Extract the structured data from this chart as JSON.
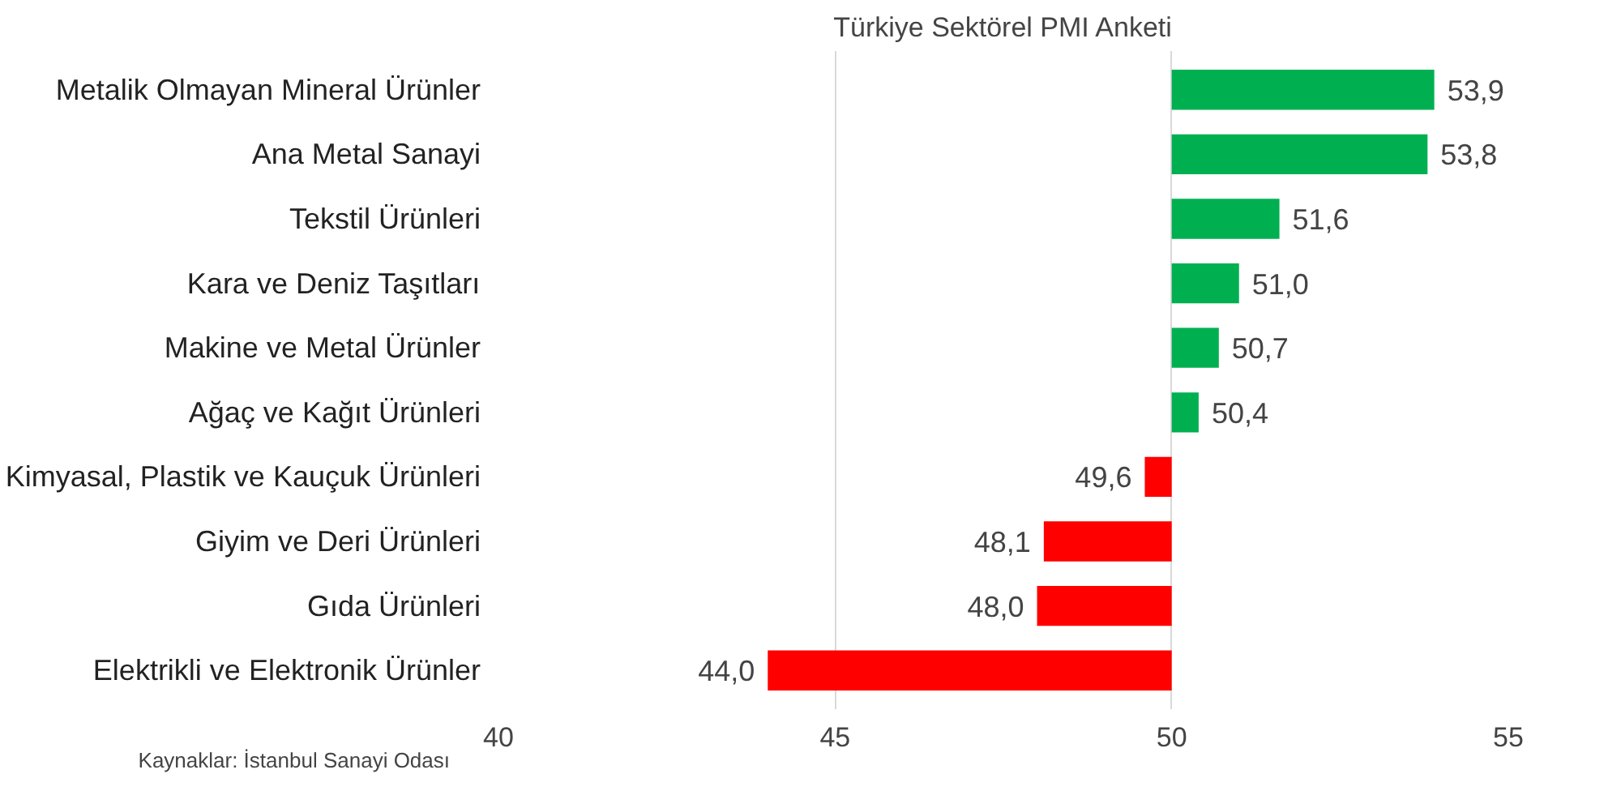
{
  "chart_data": {
    "type": "bar",
    "orientation": "horizontal",
    "title": "Türkiye Sektörel PMI Anketi",
    "categories": [
      "Metalik Olmayan Mineral Ürünler",
      "Ana Metal Sanayi",
      "Tekstil Ürünleri",
      "Kara ve Deniz Taşıtları",
      "Makine ve Metal Ürünler",
      "Ağaç ve Kağıt Ürünleri",
      "Kimyasal, Plastik ve Kauçuk Ürünleri",
      "Giyim ve Deri Ürünleri",
      "Gıda Ürünleri",
      "Elektrikli ve Elektronik Ürünler"
    ],
    "base": [
      50,
      50,
      50,
      50,
      50,
      50,
      50,
      50,
      50,
      50
    ],
    "values": [
      3.9,
      3.8,
      1.6,
      1.0,
      0.7,
      0.4,
      -0.4,
      -1.9,
      -2.0,
      -6.0
    ],
    "value_labels": [
      "53,9",
      "53,8",
      "51,6",
      "51,0",
      "50,7",
      "50,4",
      "49,6",
      "48,1",
      "48,0",
      "44,0"
    ],
    "colors": [
      "#00b050",
      "#00b050",
      "#00b050",
      "#00b050",
      "#00b050",
      "#00b050",
      "#ff0000",
      "#ff0000",
      "#ff0000",
      "#ff0000"
    ],
    "xlim": [
      40,
      55
    ],
    "xticks": [
      40,
      45,
      50,
      55
    ],
    "grid": "x",
    "annotations": [
      "Kaynaklar: İstanbul Sanayi Odası"
    ]
  }
}
